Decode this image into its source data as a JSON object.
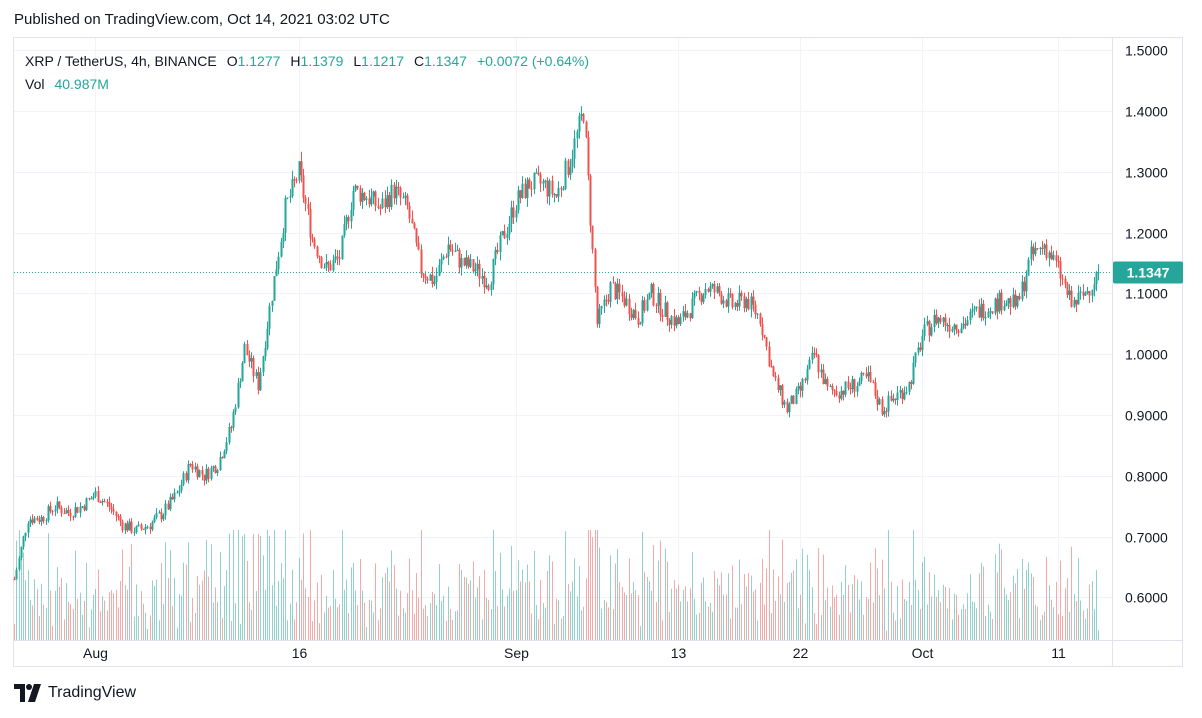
{
  "published": "Published on TradingView.com, Oct 14, 2021 03:02 UTC",
  "legend": {
    "symbol": "XRP / TetherUS, 4h, BINANCE",
    "open_label": "O",
    "open": "1.1277",
    "high_label": "H",
    "high": "1.1379",
    "low_label": "L",
    "low": "1.1217",
    "close_label": "C",
    "close": "1.1347",
    "change": "+0.0072 (+0.64%)",
    "vol_label": "Vol",
    "vol": "40.987M"
  },
  "footer": {
    "logo_text": "TradingView"
  },
  "colors": {
    "up": "#26a69a",
    "down": "#ef5350",
    "grid": "#f0f3fa",
    "text": "#131722"
  },
  "chart_data": {
    "type": "candlestick",
    "interval": "4h",
    "symbol": "XRP / TetherUS",
    "exchange": "BINANCE",
    "y_tick_labels": [
      "1.5000",
      "1.4000",
      "1.3000",
      "1.2000",
      "1.1000",
      "1.0000",
      "0.9000",
      "0.8000",
      "0.7000",
      "0.6000"
    ],
    "y_ticks": [
      1.5,
      1.4,
      1.3,
      1.2,
      1.1,
      1.0,
      0.9,
      0.8,
      0.7,
      0.6
    ],
    "ylim": [
      0.53,
      1.52
    ],
    "x_tick_labels": [
      {
        "label": "Aug",
        "date": "2021-08-01"
      },
      {
        "label": "16",
        "date": "2021-08-16"
      },
      {
        "label": "Sep",
        "date": "2021-09-01"
      },
      {
        "label": "13",
        "date": "2021-09-13"
      },
      {
        "label": "22",
        "date": "2021-09-22"
      },
      {
        "label": "Oct",
        "date": "2021-10-01"
      },
      {
        "label": "11",
        "date": "2021-10-11"
      }
    ],
    "xlim": [
      "2021-07-26",
      "2021-10-15"
    ],
    "last_price": 1.1347,
    "last_price_label": "1.1347",
    "vol_max_millions": 215,
    "daily_close_path": [
      [
        "2021-07-26",
        0.63
      ],
      [
        "2021-07-27",
        0.73
      ],
      [
        "2021-07-28",
        0.73
      ],
      [
        "2021-07-29",
        0.75
      ],
      [
        "2021-07-30",
        0.74
      ],
      [
        "2021-07-31",
        0.75
      ],
      [
        "2021-08-01",
        0.77
      ],
      [
        "2021-08-02",
        0.75
      ],
      [
        "2021-08-03",
        0.72
      ],
      [
        "2021-08-04",
        0.71
      ],
      [
        "2021-08-05",
        0.72
      ],
      [
        "2021-08-06",
        0.74
      ],
      [
        "2021-08-07",
        0.77
      ],
      [
        "2021-08-08",
        0.82
      ],
      [
        "2021-08-09",
        0.8
      ],
      [
        "2021-08-10",
        0.82
      ],
      [
        "2021-08-11",
        0.88
      ],
      [
        "2021-08-12",
        1.01
      ],
      [
        "2021-08-13",
        0.95
      ],
      [
        "2021-08-14",
        1.1
      ],
      [
        "2021-08-15",
        1.24
      ],
      [
        "2021-08-16",
        1.3
      ],
      [
        "2021-08-17",
        1.19
      ],
      [
        "2021-08-18",
        1.14
      ],
      [
        "2021-08-19",
        1.16
      ],
      [
        "2021-08-20",
        1.27
      ],
      [
        "2021-08-21",
        1.26
      ],
      [
        "2021-08-22",
        1.24
      ],
      [
        "2021-08-23",
        1.27
      ],
      [
        "2021-08-24",
        1.24
      ],
      [
        "2021-08-25",
        1.14
      ],
      [
        "2021-08-26",
        1.12
      ],
      [
        "2021-08-27",
        1.18
      ],
      [
        "2021-08-28",
        1.15
      ],
      [
        "2021-08-29",
        1.14
      ],
      [
        "2021-08-30",
        1.12
      ],
      [
        "2021-08-31",
        1.19
      ],
      [
        "2021-09-01",
        1.25
      ],
      [
        "2021-09-02",
        1.28
      ],
      [
        "2021-09-03",
        1.28
      ],
      [
        "2021-09-04",
        1.26
      ],
      [
        "2021-09-05",
        1.32
      ],
      [
        "2021-09-06",
        1.4
      ],
      [
        "2021-09-07",
        1.05
      ],
      [
        "2021-09-08",
        1.11
      ],
      [
        "2021-09-09",
        1.09
      ],
      [
        "2021-09-10",
        1.06
      ],
      [
        "2021-09-11",
        1.1
      ],
      [
        "2021-09-12",
        1.07
      ],
      [
        "2021-09-13",
        1.05
      ],
      [
        "2021-09-14",
        1.08
      ],
      [
        "2021-09-15",
        1.11
      ],
      [
        "2021-09-16",
        1.1
      ],
      [
        "2021-09-17",
        1.08
      ],
      [
        "2021-09-18",
        1.09
      ],
      [
        "2021-09-19",
        1.06
      ],
      [
        "2021-09-20",
        0.96
      ],
      [
        "2021-09-21",
        0.91
      ],
      [
        "2021-09-22",
        0.94
      ],
      [
        "2021-09-23",
        1.0
      ],
      [
        "2021-09-24",
        0.94
      ],
      [
        "2021-09-25",
        0.94
      ],
      [
        "2021-09-26",
        0.95
      ],
      [
        "2021-09-27",
        0.96
      ],
      [
        "2021-09-28",
        0.91
      ],
      [
        "2021-09-29",
        0.93
      ],
      [
        "2021-09-30",
        0.95
      ],
      [
        "2021-10-01",
        1.03
      ],
      [
        "2021-10-02",
        1.06
      ],
      [
        "2021-10-03",
        1.05
      ],
      [
        "2021-10-04",
        1.05
      ],
      [
        "2021-10-05",
        1.07
      ],
      [
        "2021-10-06",
        1.08
      ],
      [
        "2021-10-07",
        1.09
      ],
      [
        "2021-10-08",
        1.08
      ],
      [
        "2021-10-09",
        1.16
      ],
      [
        "2021-10-10",
        1.18
      ],
      [
        "2021-10-11",
        1.14
      ],
      [
        "2021-10-12",
        1.08
      ],
      [
        "2021-10-13",
        1.1
      ],
      [
        "2021-10-14",
        1.1347
      ]
    ]
  }
}
